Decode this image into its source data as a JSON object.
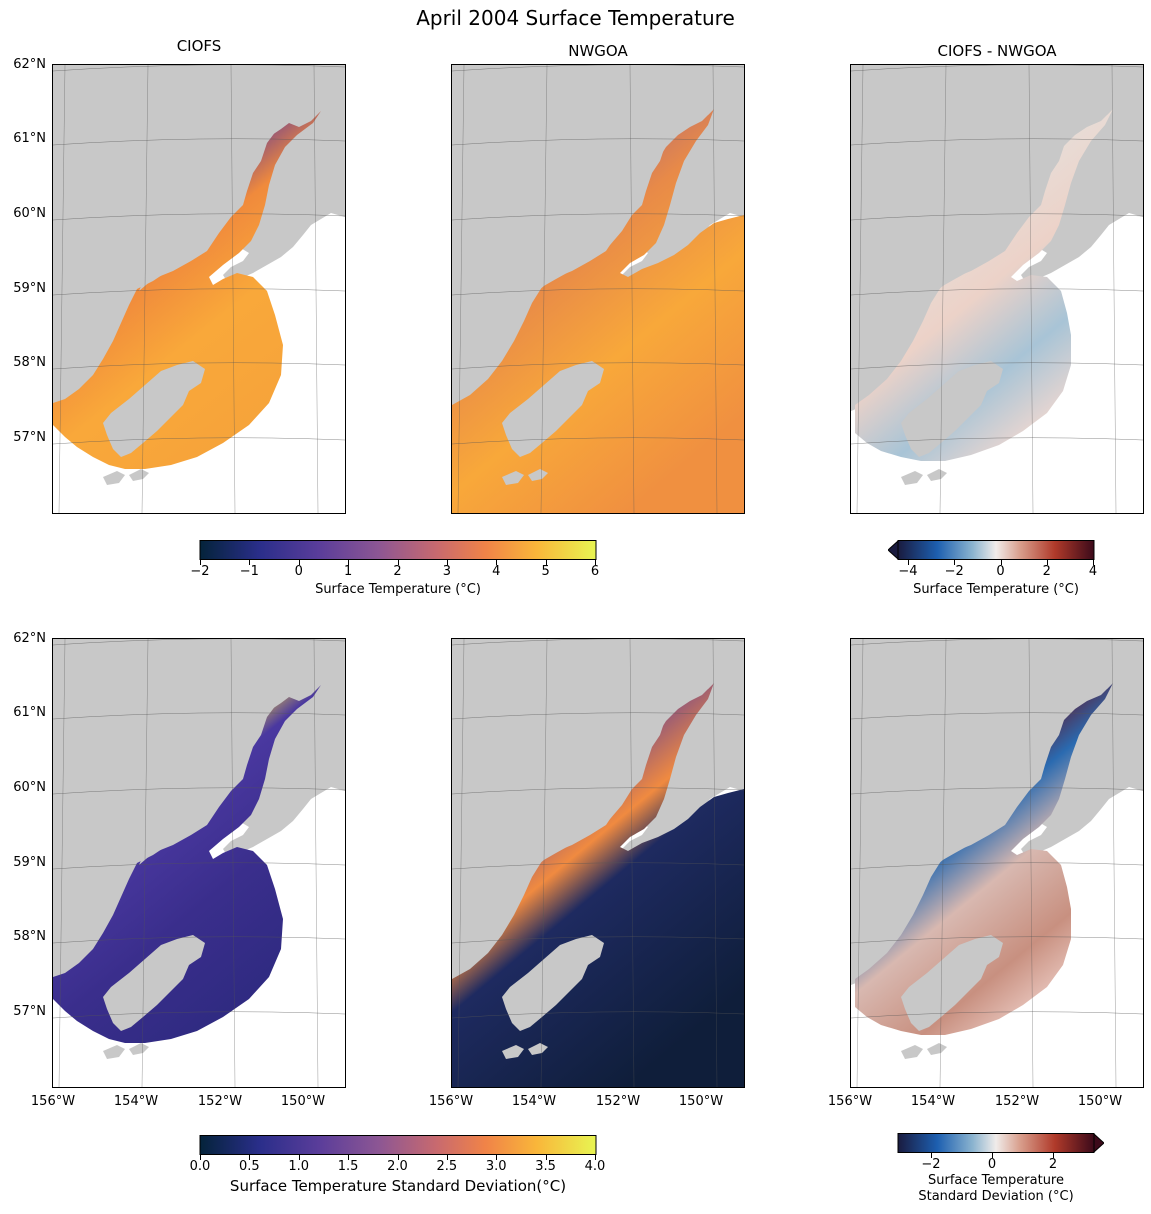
{
  "figure": {
    "title": "April 2004 Surface Temperature"
  },
  "panels": [
    {
      "id": "ciofs-mean",
      "title": "CIOFS",
      "show_lat": true,
      "show_lon": false
    },
    {
      "id": "nwgoa-mean",
      "title": "NWGOA",
      "show_lat": false,
      "show_lon": false
    },
    {
      "id": "diff-mean",
      "title": "CIOFS - NWGOA",
      "show_lat": false,
      "show_lon": false
    },
    {
      "id": "ciofs-std",
      "title": "",
      "show_lat": true,
      "show_lon": true
    },
    {
      "id": "nwgoa-std",
      "title": "",
      "show_lat": false,
      "show_lon": true
    },
    {
      "id": "diff-std",
      "title": "",
      "show_lat": false,
      "show_lon": true
    }
  ],
  "lat_labels": [
    "62°N",
    "61°N",
    "60°N",
    "59°N",
    "58°N",
    "57°N"
  ],
  "lon_labels": [
    "156°W",
    "154°W",
    "152°W",
    "150°W"
  ],
  "colorbars": [
    {
      "id": "temp",
      "ticks": [
        "−2",
        "−1",
        "0",
        "1",
        "2",
        "3",
        "4",
        "5",
        "6"
      ],
      "label": "Surface Temperature (°C)",
      "colormap": "thermal",
      "extend": "none"
    },
    {
      "id": "diff",
      "ticks": [
        "−4",
        "−2",
        "0",
        "2",
        "4"
      ],
      "label": "Surface Temperature (°C)",
      "colormap": "balance",
      "extend": "min"
    },
    {
      "id": "std",
      "ticks": [
        "0.0",
        "0.5",
        "1.0",
        "1.5",
        "2.0",
        "2.5",
        "3.0",
        "3.5",
        "4.0"
      ],
      "label": "Surface Temperature Standard Deviation(°C)",
      "colormap": "thermal",
      "extend": "none"
    },
    {
      "id": "stddiff",
      "ticks": [
        "−2",
        "0",
        "2"
      ],
      "label_line1": "Surface Temperature",
      "label_line2": "Standard Deviation (°C)",
      "colormap": "balance",
      "extend": "max"
    }
  ],
  "colors": {
    "land": "#c8c8c8",
    "ocean": "#ffffff",
    "grid": "#555555"
  }
}
